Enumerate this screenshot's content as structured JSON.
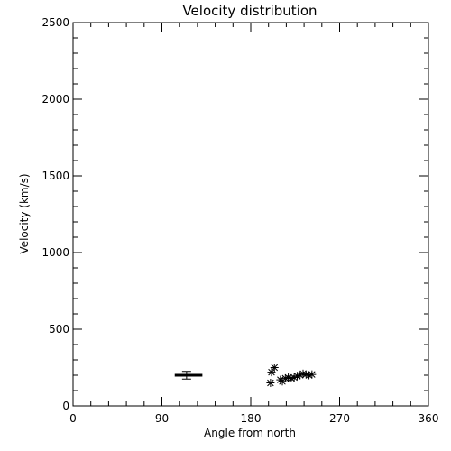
{
  "chart_data": {
    "type": "scatter",
    "title": "Velocity distribution",
    "xlabel": "Angle from north",
    "ylabel": "Velocity (km/s)",
    "xlim": [
      0,
      360
    ],
    "ylim": [
      0,
      2500
    ],
    "x_ticks": [
      0,
      90,
      180,
      270,
      360
    ],
    "y_ticks": [
      0,
      500,
      1000,
      1500,
      2000,
      2500
    ],
    "grid": false,
    "legend": "none",
    "marker": "asterisk",
    "colors": {
      "axes": "#000000",
      "background": "#ffffff",
      "points": "#000000"
    },
    "points": [
      {
        "x": 200,
        "y": 150
      },
      {
        "x": 201,
        "y": 220
      },
      {
        "x": 204,
        "y": 250
      },
      {
        "x": 210,
        "y": 170
      },
      {
        "x": 212,
        "y": 160
      },
      {
        "x": 215,
        "y": 180
      },
      {
        "x": 218,
        "y": 185
      },
      {
        "x": 221,
        "y": 180
      },
      {
        "x": 224,
        "y": 185
      },
      {
        "x": 227,
        "y": 195
      },
      {
        "x": 230,
        "y": 200
      },
      {
        "x": 233,
        "y": 210
      },
      {
        "x": 236,
        "y": 205
      },
      {
        "x": 239,
        "y": 200
      },
      {
        "x": 242,
        "y": 205
      }
    ],
    "summary_errorbar": {
      "x": 115,
      "x_low": 103,
      "x_high": 131,
      "y": 200,
      "y_low": 175,
      "y_high": 225
    }
  }
}
